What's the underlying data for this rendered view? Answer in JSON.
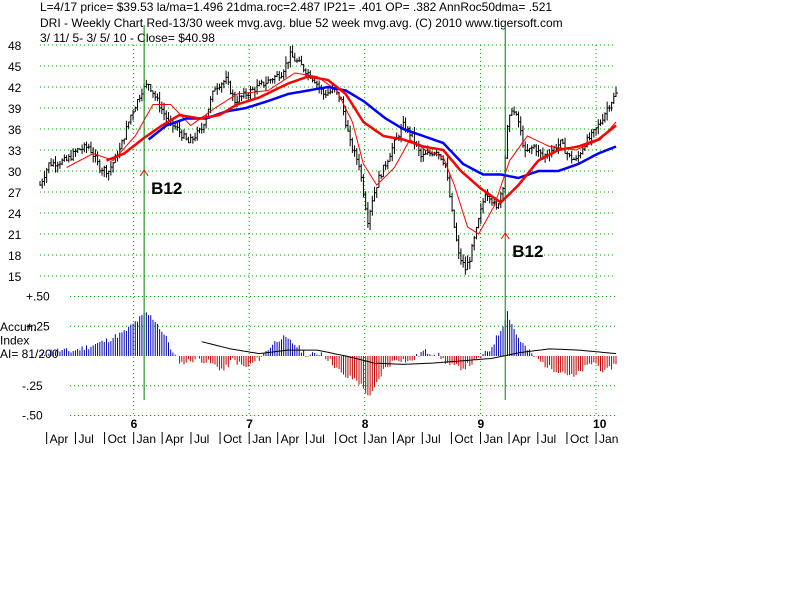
{
  "header": {
    "line1": "L=4/17  price= $39.53  la/ma=1.496 21dma.roc=2.487 IP21= .401 OP= .382 AnnRoc50dma= .521",
    "line2": "DRI  - Weekly Chart  Red-13/30 week mvg.avg.  blue 52 week mvg.avg.  (C) 2010 www.tigersoft.com",
    "line3": " 3/ 11/ 5- 3/ 5/ 10 -     Close= $40.98"
  },
  "colors": {
    "background": "#ffffff",
    "grid": "#00a000",
    "price_bar": "#000000",
    "ma13": "#ff0000",
    "ma30": "#ff0000",
    "ma52": "#0000ff",
    "accum_positive": "#0000b0",
    "accum_negative": "#c00000",
    "accum_ma": "#000000",
    "signal_line": "#008000",
    "signal_arrow": "#ff0000"
  },
  "chart_data": [
    {
      "type": "line",
      "title": "",
      "x_start": "2005-03-11",
      "x_end": "2010-03-05",
      "y_ticks": [
        "15",
        "18",
        "21",
        "24",
        "27",
        "30",
        "33",
        "36",
        "39",
        "42",
        "45",
        "48"
      ],
      "ylim": [
        15,
        48
      ],
      "grid": true,
      "x_year_labels": [
        "6",
        "7",
        "8",
        "9",
        "10"
      ],
      "x_month_labels": [
        "Apr",
        "Jul",
        "Oct",
        "Jan",
        "Apr",
        "Jul",
        "Oct",
        "Jan",
        "Apr",
        "Jul",
        "Oct",
        "Jan",
        "Apr",
        "Jul",
        "Oct",
        "Jan",
        "Apr",
        "Jul",
        "Oct",
        "Jan",
        "Apr",
        "Jul",
        "Oct",
        "Jan"
      ],
      "price_keypoints": [
        [
          "2005-03-11",
          28.0
        ],
        [
          "2005-04-08",
          31.0
        ],
        [
          "2005-06-03",
          31.5
        ],
        [
          "2005-07-08",
          33.0
        ],
        [
          "2005-08-12",
          33.5
        ],
        [
          "2005-09-16",
          30.5
        ],
        [
          "2005-10-14",
          30.0
        ],
        [
          "2005-11-18",
          33.0
        ],
        [
          "2005-12-23",
          38.0
        ],
        [
          "2006-01-27",
          41.5
        ],
        [
          "2006-02-17",
          42.5
        ],
        [
          "2006-03-17",
          40.0
        ],
        [
          "2006-04-21",
          37.0
        ],
        [
          "2006-05-19",
          36.0
        ],
        [
          "2006-06-23",
          34.0
        ],
        [
          "2006-08-04",
          36.0
        ],
        [
          "2006-09-15",
          42.0
        ],
        [
          "2006-10-20",
          43.0
        ],
        [
          "2006-11-17",
          40.0
        ],
        [
          "2006-12-22",
          41.0
        ],
        [
          "2007-02-16",
          42.5
        ],
        [
          "2007-04-13",
          44.0
        ],
        [
          "2007-05-11",
          46.5
        ],
        [
          "2007-06-15",
          45.0
        ],
        [
          "2007-07-27",
          43.0
        ],
        [
          "2007-08-24",
          41.0
        ],
        [
          "2007-09-28",
          41.5
        ],
        [
          "2007-10-19",
          40.0
        ],
        [
          "2007-11-16",
          34.0
        ],
        [
          "2007-12-14",
          31.0
        ],
        [
          "2007-12-28",
          27.0
        ],
        [
          "2008-01-11",
          23.0
        ],
        [
          "2008-01-25",
          26.0
        ],
        [
          "2008-02-15",
          29.0
        ],
        [
          "2008-03-07",
          31.0
        ],
        [
          "2008-04-04",
          34.0
        ],
        [
          "2008-05-02",
          36.5
        ],
        [
          "2008-05-30",
          35.0
        ],
        [
          "2008-06-27",
          32.0
        ],
        [
          "2008-07-25",
          32.5
        ],
        [
          "2008-08-15",
          33.0
        ],
        [
          "2008-09-12",
          31.0
        ],
        [
          "2008-10-03",
          24.0
        ],
        [
          "2008-10-24",
          18.0
        ],
        [
          "2008-11-14",
          16.0
        ],
        [
          "2008-11-28",
          17.5
        ],
        [
          "2008-12-19",
          21.5
        ],
        [
          "2009-01-16",
          27.0
        ],
        [
          "2009-01-30",
          26.5
        ],
        [
          "2009-02-20",
          24.5
        ],
        [
          "2009-03-13",
          28.0
        ],
        [
          "2009-03-27",
          36.0
        ],
        [
          "2009-04-10",
          39.0
        ],
        [
          "2009-05-01",
          37.0
        ],
        [
          "2009-05-22",
          32.5
        ],
        [
          "2009-06-19",
          33.5
        ],
        [
          "2009-07-17",
          32.0
        ],
        [
          "2009-08-14",
          33.0
        ],
        [
          "2009-09-11",
          34.0
        ],
        [
          "2009-10-09",
          32.0
        ],
        [
          "2009-10-30",
          31.5
        ],
        [
          "2009-11-27",
          34.0
        ],
        [
          "2009-12-18",
          35.0
        ],
        [
          "2010-01-15",
          37.0
        ],
        [
          "2010-02-05",
          39.0
        ],
        [
          "2010-03-05",
          41.0
        ]
      ],
      "ma13_keypoints": [
        [
          "2005-06-03",
          30.5
        ],
        [
          "2005-08-26",
          32.5
        ],
        [
          "2005-10-28",
          31.5
        ],
        [
          "2006-01-06",
          35.0
        ],
        [
          "2006-03-03",
          39.5
        ],
        [
          "2006-04-28",
          39.5
        ],
        [
          "2006-06-30",
          36.5
        ],
        [
          "2006-09-15",
          39.0
        ],
        [
          "2006-11-24",
          41.0
        ],
        [
          "2007-03-02",
          41.5
        ],
        [
          "2007-05-25",
          44.0
        ],
        [
          "2007-08-03",
          43.5
        ],
        [
          "2007-10-05",
          41.5
        ],
        [
          "2007-11-23",
          37.0
        ],
        [
          "2007-12-28",
          31.0
        ],
        [
          "2008-02-08",
          28.0
        ],
        [
          "2008-04-04",
          30.5
        ],
        [
          "2008-05-23",
          34.5
        ],
        [
          "2008-07-11",
          33.0
        ],
        [
          "2008-09-05",
          32.0
        ],
        [
          "2008-10-10",
          28.0
        ],
        [
          "2008-11-21",
          22.0
        ],
        [
          "2008-12-26",
          21.0
        ],
        [
          "2009-02-13",
          25.0
        ],
        [
          "2009-04-03",
          31.5
        ],
        [
          "2009-05-29",
          35.0
        ],
        [
          "2009-08-07",
          33.5
        ],
        [
          "2009-10-30",
          33.0
        ],
        [
          "2010-01-15",
          34.5
        ],
        [
          "2010-03-05",
          37.0
        ]
      ],
      "ma30_keypoints": [
        [
          "2005-10-07",
          31.5
        ],
        [
          "2005-12-02",
          32.5
        ],
        [
          "2006-01-27",
          34.5
        ],
        [
          "2006-03-31",
          36.5
        ],
        [
          "2006-05-26",
          38.0
        ],
        [
          "2006-07-28",
          37.5
        ],
        [
          "2006-09-29",
          38.0
        ],
        [
          "2006-11-24",
          39.5
        ],
        [
          "2007-02-02",
          40.5
        ],
        [
          "2007-05-04",
          42.5
        ],
        [
          "2007-07-06",
          43.5
        ],
        [
          "2007-09-07",
          43.0
        ],
        [
          "2007-11-02",
          41.0
        ],
        [
          "2007-12-28",
          37.0
        ],
        [
          "2008-02-29",
          35.0
        ],
        [
          "2008-05-02",
          34.5
        ],
        [
          "2008-07-04",
          33.5
        ],
        [
          "2008-09-05",
          33.0
        ],
        [
          "2008-10-31",
          30.0
        ],
        [
          "2009-01-02",
          27.5
        ],
        [
          "2009-03-06",
          25.5
        ],
        [
          "2009-05-01",
          28.0
        ],
        [
          "2009-07-03",
          31.5
        ],
        [
          "2009-09-04",
          33.0
        ],
        [
          "2009-11-06",
          33.5
        ],
        [
          "2010-01-08",
          34.5
        ],
        [
          "2010-03-05",
          36.5
        ]
      ],
      "ma52_keypoints": [
        [
          "2006-02-17",
          34.5
        ],
        [
          "2006-04-14",
          36.5
        ],
        [
          "2006-06-16",
          37.5
        ],
        [
          "2006-08-18",
          37.5
        ],
        [
          "2006-10-20",
          38.5
        ],
        [
          "2006-12-22",
          39.0
        ],
        [
          "2007-03-02",
          40.0
        ],
        [
          "2007-05-04",
          41.0
        ],
        [
          "2007-07-06",
          41.5
        ],
        [
          "2007-09-07",
          42.0
        ],
        [
          "2007-11-02",
          41.5
        ],
        [
          "2007-12-28",
          40.0
        ],
        [
          "2008-03-07",
          37.5
        ],
        [
          "2008-05-02",
          36.0
        ],
        [
          "2008-07-04",
          35.0
        ],
        [
          "2008-09-05",
          34.0
        ],
        [
          "2008-11-07",
          31.0
        ],
        [
          "2009-01-09",
          29.5
        ],
        [
          "2009-03-06",
          29.5
        ],
        [
          "2009-05-01",
          29.0
        ],
        [
          "2009-07-03",
          30.0
        ],
        [
          "2009-09-04",
          30.0
        ],
        [
          "2009-11-06",
          31.0
        ],
        [
          "2010-01-08",
          32.5
        ],
        [
          "2010-03-05",
          33.5
        ]
      ]
    },
    {
      "type": "bar",
      "title": "Accum Index",
      "label_lines": [
        "Accum",
        "Index",
        "AI= 81/200"
      ],
      "y_ticks": [
        "+.50",
        "+.25",
        "-.25",
        "-.50"
      ],
      "ylim": [
        -0.5,
        0.5
      ],
      "accum_keypoints": [
        [
          "2005-03-11",
          0.0
        ],
        [
          "2005-04-22",
          0.05
        ],
        [
          "2005-06-17",
          0.04
        ],
        [
          "2005-08-12",
          0.08
        ],
        [
          "2005-10-07",
          0.13
        ],
        [
          "2005-12-02",
          0.2
        ],
        [
          "2006-01-13",
          0.3
        ],
        [
          "2006-02-10",
          0.36
        ],
        [
          "2006-03-10",
          0.3
        ],
        [
          "2006-04-21",
          0.12
        ],
        [
          "2006-05-05",
          0.02
        ],
        [
          "2006-06-02",
          -0.06
        ],
        [
          "2006-07-21",
          -0.02
        ],
        [
          "2006-09-01",
          -0.06
        ],
        [
          "2006-10-13",
          -0.12
        ],
        [
          "2006-11-10",
          -0.03
        ],
        [
          "2006-12-22",
          -0.1
        ],
        [
          "2007-02-02",
          -0.02
        ],
        [
          "2007-03-16",
          0.1
        ],
        [
          "2007-04-13",
          0.16
        ],
        [
          "2007-05-25",
          0.1
        ],
        [
          "2007-07-06",
          0.0
        ],
        [
          "2007-08-17",
          0.03
        ],
        [
          "2007-09-28",
          -0.08
        ],
        [
          "2007-10-26",
          -0.17
        ],
        [
          "2007-12-07",
          -0.2
        ],
        [
          "2008-01-18",
          -0.35
        ],
        [
          "2008-02-29",
          -0.12
        ],
        [
          "2008-04-11",
          -0.02
        ],
        [
          "2008-05-23",
          -0.05
        ],
        [
          "2008-07-04",
          0.04
        ],
        [
          "2008-08-15",
          0.02
        ],
        [
          "2008-09-26",
          -0.08
        ],
        [
          "2008-11-07",
          -0.1
        ],
        [
          "2008-12-19",
          -0.04
        ],
        [
          "2009-01-30",
          0.05
        ],
        [
          "2009-03-06",
          0.22
        ],
        [
          "2009-03-27",
          0.37
        ],
        [
          "2009-04-24",
          0.18
        ],
        [
          "2009-05-29",
          0.05
        ],
        [
          "2009-06-26",
          -0.02
        ],
        [
          "2009-08-07",
          -0.1
        ],
        [
          "2009-09-18",
          -0.13
        ],
        [
          "2009-10-23",
          -0.18
        ],
        [
          "2009-11-27",
          -0.1
        ],
        [
          "2009-12-25",
          -0.05
        ],
        [
          "2010-01-29",
          -0.14
        ],
        [
          "2010-03-05",
          -0.06
        ]
      ],
      "ma_keypoints": [
        [
          "2006-08-04",
          0.12
        ],
        [
          "2006-11-03",
          0.06
        ],
        [
          "2007-02-02",
          0.02
        ],
        [
          "2007-05-04",
          0.05
        ],
        [
          "2007-08-03",
          0.05
        ],
        [
          "2007-11-02",
          0.0
        ],
        [
          "2008-02-01",
          -0.06
        ],
        [
          "2008-05-02",
          -0.07
        ],
        [
          "2008-08-01",
          -0.06
        ],
        [
          "2008-11-07",
          -0.04
        ],
        [
          "2009-02-06",
          -0.02
        ],
        [
          "2009-05-08",
          0.03
        ],
        [
          "2009-08-07",
          0.06
        ],
        [
          "2009-11-06",
          0.05
        ],
        [
          "2010-03-05",
          0.02
        ]
      ]
    }
  ],
  "signals": [
    {
      "date": "2006-02-03",
      "price": 30.0,
      "label": "B12"
    },
    {
      "date": "2009-03-20",
      "price": 21.0,
      "label": "B12"
    }
  ]
}
